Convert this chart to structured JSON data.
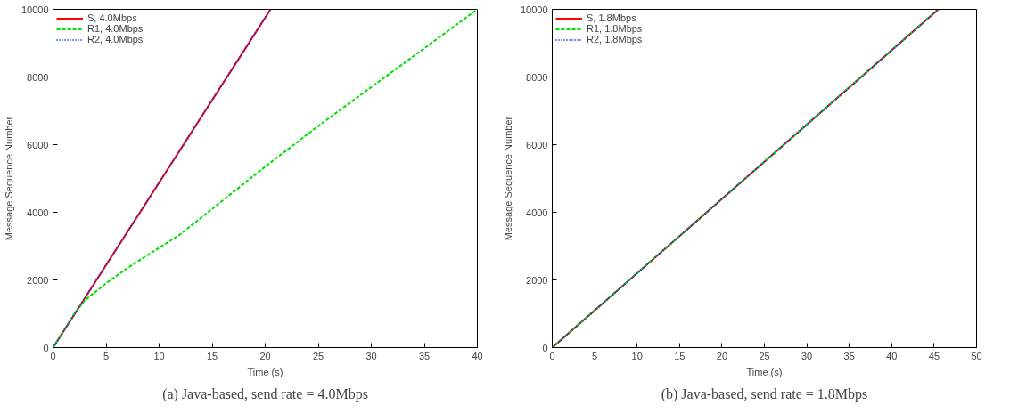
{
  "chart_data": [
    {
      "type": "line",
      "xlabel": "Time (s)",
      "ylabel": "Message Sequence Number",
      "xlim": [
        0,
        40
      ],
      "ylim": [
        0,
        10000
      ],
      "xticks": [
        0,
        5,
        10,
        15,
        20,
        25,
        30,
        35,
        40
      ],
      "yticks": [
        0,
        2000,
        4000,
        6000,
        8000,
        10000
      ],
      "grid": false,
      "legend": "top left",
      "marker": "none",
      "annotations": [
        "(a) Java-based, send rate = 4.0Mbps"
      ],
      "series": [
        {
          "name": "S, 4.0Mbps",
          "color": "#ff0000",
          "line_style": "solid",
          "x": [
            0,
            20.5
          ],
          "values": [
            0,
            10000
          ]
        },
        {
          "name": "R1, 4.0Mbps",
          "color": "#00e000",
          "line_style": "dashed",
          "x": [
            0,
            2,
            3,
            5,
            7,
            10,
            12,
            15,
            20,
            25,
            30,
            35,
            40
          ],
          "values": [
            0,
            1000,
            1400,
            1900,
            2350,
            2950,
            3350,
            4100,
            5350,
            6550,
            7700,
            8850,
            10000
          ]
        },
        {
          "name": "R2, 4.0Mbps",
          "color": "#0033ff",
          "line_style": "dotted",
          "x": [
            0,
            20.5
          ],
          "values": [
            0,
            10000
          ]
        }
      ]
    },
    {
      "type": "line",
      "xlabel": "Time (s)",
      "ylabel": "Message Sequence Number",
      "xlim": [
        0,
        50
      ],
      "ylim": [
        0,
        10000
      ],
      "xticks": [
        0,
        5,
        10,
        15,
        20,
        25,
        30,
        35,
        40,
        45,
        50
      ],
      "yticks": [
        0,
        2000,
        4000,
        6000,
        8000,
        10000
      ],
      "grid": false,
      "legend": "top left",
      "marker": "none",
      "annotations": [
        "(b) Java-based, send rate = 1.8Mbps"
      ],
      "series": [
        {
          "name": "S, 1.8Mbps",
          "color": "#ff0000",
          "line_style": "solid",
          "x": [
            0,
            45.5
          ],
          "values": [
            0,
            10000
          ]
        },
        {
          "name": "R1, 1.8Mbps",
          "color": "#00e000",
          "line_style": "dashed",
          "x": [
            0,
            45.5
          ],
          "values": [
            0,
            10000
          ]
        },
        {
          "name": "R2, 1.8Mbps",
          "color": "#0033ff",
          "line_style": "dotted",
          "x": [
            0,
            45.5
          ],
          "values": [
            0,
            10000
          ]
        }
      ]
    }
  ]
}
